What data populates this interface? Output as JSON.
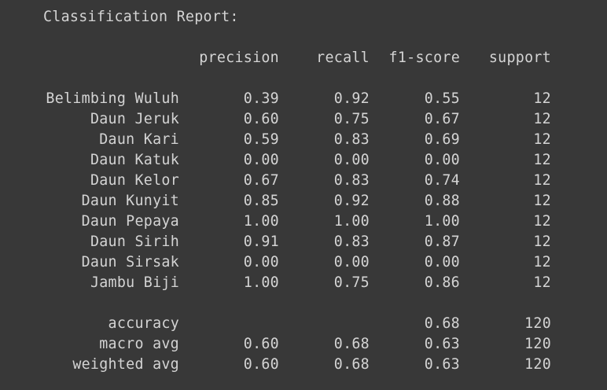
{
  "report": {
    "title": "Classification Report:",
    "headers": {
      "precision": "precision",
      "recall": "recall",
      "f1": "f1-score",
      "support": "support"
    },
    "rows": [
      {
        "label": "Belimbing Wuluh",
        "precision": "0.39",
        "recall": "0.92",
        "f1": "0.55",
        "support": "12"
      },
      {
        "label": "Daun Jeruk",
        "precision": "0.60",
        "recall": "0.75",
        "f1": "0.67",
        "support": "12"
      },
      {
        "label": "Daun Kari",
        "precision": "0.59",
        "recall": "0.83",
        "f1": "0.69",
        "support": "12"
      },
      {
        "label": "Daun Katuk",
        "precision": "0.00",
        "recall": "0.00",
        "f1": "0.00",
        "support": "12"
      },
      {
        "label": "Daun Kelor",
        "precision": "0.67",
        "recall": "0.83",
        "f1": "0.74",
        "support": "12"
      },
      {
        "label": "Daun Kunyit",
        "precision": "0.85",
        "recall": "0.92",
        "f1": "0.88",
        "support": "12"
      },
      {
        "label": "Daun Pepaya",
        "precision": "1.00",
        "recall": "1.00",
        "f1": "1.00",
        "support": "12"
      },
      {
        "label": "Daun Sirih",
        "precision": "0.91",
        "recall": "0.83",
        "f1": "0.87",
        "support": "12"
      },
      {
        "label": "Daun Sirsak",
        "precision": "0.00",
        "recall": "0.00",
        "f1": "0.00",
        "support": "12"
      },
      {
        "label": "Jambu Biji",
        "precision": "1.00",
        "recall": "0.75",
        "f1": "0.86",
        "support": "12"
      }
    ],
    "summary": [
      {
        "label": "accuracy",
        "precision": "",
        "recall": "",
        "f1": "0.68",
        "support": "120"
      },
      {
        "label": "macro avg",
        "precision": "0.60",
        "recall": "0.68",
        "f1": "0.63",
        "support": "120"
      },
      {
        "label": "weighted avg",
        "precision": "0.60",
        "recall": "0.68",
        "f1": "0.63",
        "support": "120"
      }
    ]
  },
  "colors": {
    "background": "#383838",
    "text": "#d4d4d4"
  }
}
